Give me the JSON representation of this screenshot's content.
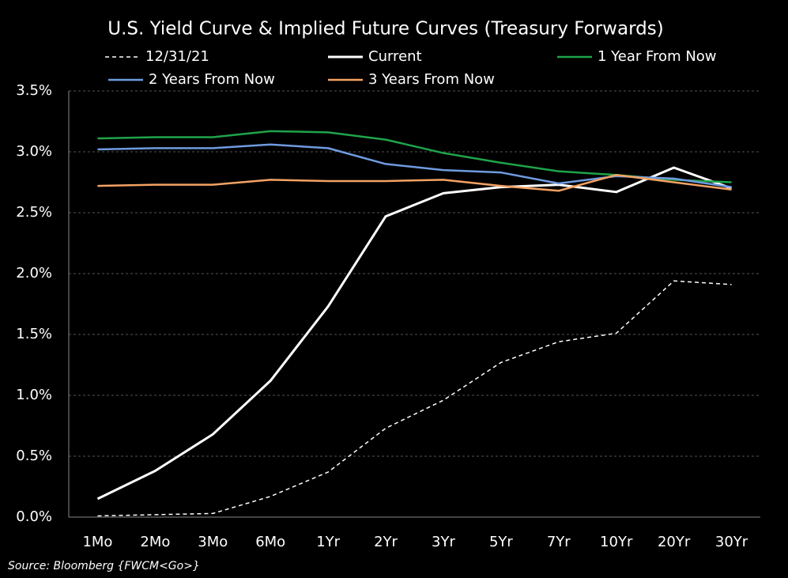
{
  "chart_data": {
    "type": "line",
    "title": "U.S. Yield Curve & Implied Future Curves (Treasury Forwards)",
    "source": "Source: Bloomberg {FWCM<Go>}",
    "categories": [
      "1Mo",
      "2Mo",
      "3Mo",
      "6Mo",
      "1Yr",
      "2Yr",
      "3Yr",
      "5Yr",
      "7Yr",
      "10Yr",
      "20Yr",
      "30Yr"
    ],
    "series": [
      {
        "name": "12/31/21",
        "color": "#ffffff",
        "dashed": true,
        "width": 1.5,
        "values": [
          0.01,
          0.02,
          0.03,
          0.17,
          0.37,
          0.73,
          0.96,
          1.27,
          1.44,
          1.51,
          1.94,
          1.91
        ]
      },
      {
        "name": "Current",
        "color": "#ffffff",
        "dashed": false,
        "width": 3,
        "values": [
          0.15,
          0.38,
          0.68,
          1.12,
          1.73,
          2.47,
          2.66,
          2.71,
          2.73,
          2.67,
          2.87,
          2.7
        ]
      },
      {
        "name": "1 Year From Now",
        "color": "#1fa34a",
        "dashed": false,
        "width": 2.5,
        "values": [
          3.11,
          3.12,
          3.12,
          3.17,
          3.16,
          3.1,
          2.99,
          2.91,
          2.84,
          2.81,
          2.77,
          2.75
        ]
      },
      {
        "name": "2 Years From Now",
        "color": "#6f9be0",
        "dashed": false,
        "width": 2.5,
        "values": [
          3.02,
          3.03,
          3.03,
          3.06,
          3.03,
          2.9,
          2.85,
          2.83,
          2.74,
          2.8,
          2.78,
          2.71
        ]
      },
      {
        "name": "3 Years From Now",
        "color": "#f4a263",
        "dashed": false,
        "width": 2.5,
        "values": [
          2.72,
          2.73,
          2.73,
          2.77,
          2.76,
          2.76,
          2.77,
          2.72,
          2.68,
          2.81,
          2.75,
          2.69
        ]
      }
    ],
    "ylim": [
      0,
      3.5
    ],
    "yticks": [
      {
        "value": 0,
        "label": "0.0%"
      },
      {
        "value": 0.5,
        "label": "0.5%"
      },
      {
        "value": 1,
        "label": "1.0%"
      },
      {
        "value": 1.5,
        "label": "1.5%"
      },
      {
        "value": 2,
        "label": "2.0%"
      },
      {
        "value": 2.5,
        "label": "2.5%"
      },
      {
        "value": 3,
        "label": "3.0%"
      },
      {
        "value": 3.5,
        "label": "3.5%"
      }
    ],
    "grid": true
  }
}
